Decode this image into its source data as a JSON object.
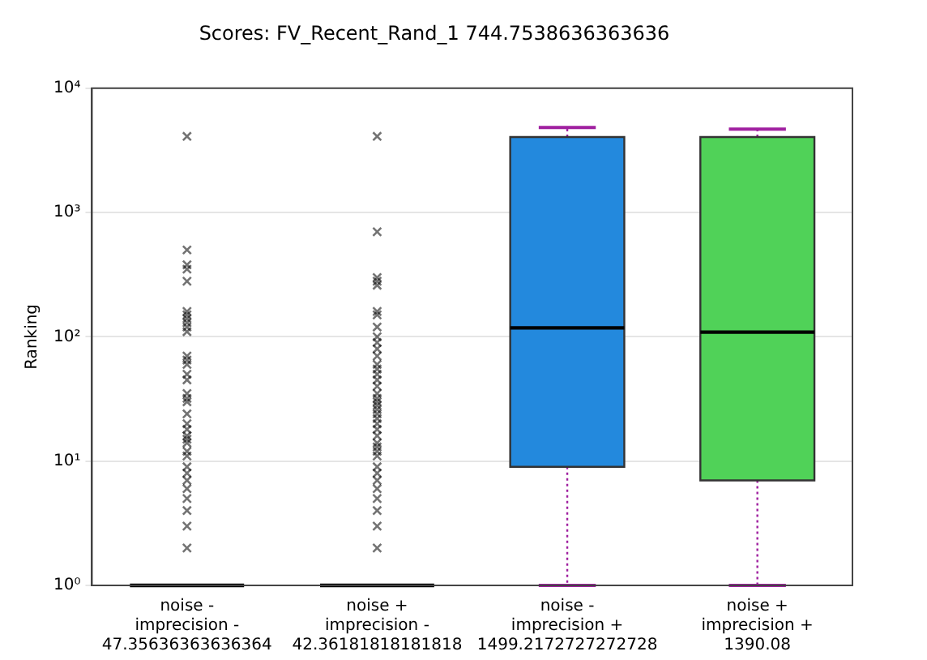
{
  "chart_data": {
    "type": "box",
    "title": "Scores: FV_Recent_Rand_1 744.7538636363636",
    "ylabel": "Ranking",
    "categories": [
      "noise -\nimprecision -\n47.35636363636364",
      "noise +\nimprecision -\n42.36181818181818",
      "noise -\nimprecision +\n1499.2172727272728",
      "noise +\nimprecision +\n1390.08"
    ],
    "colors": [
      "#000000",
      "#000000",
      "#2389dd",
      "#50d258"
    ],
    "boxes": [
      {
        "low": 1,
        "q1": 1,
        "median": 1,
        "q3": 1,
        "high": 1,
        "outliers": [
          4100,
          500,
          380,
          350,
          280,
          160,
          150,
          140,
          130,
          120,
          110,
          70,
          65,
          60,
          50,
          45,
          35,
          32,
          30,
          24,
          20,
          18,
          16,
          15,
          14,
          12,
          11,
          9,
          8,
          7,
          6,
          5,
          4,
          3,
          2
        ]
      },
      {
        "low": 1,
        "q1": 1,
        "median": 1,
        "q3": 1,
        "high": 1,
        "outliers": [
          4100,
          700,
          300,
          280,
          260,
          160,
          150,
          120,
          100,
          90,
          80,
          70,
          60,
          55,
          50,
          45,
          40,
          35,
          32,
          30,
          28,
          26,
          24,
          22,
          20,
          18,
          16,
          14,
          13,
          12,
          11,
          9,
          8,
          7,
          6,
          5,
          4,
          3,
          2
        ]
      },
      {
        "low": 1,
        "q1": 9,
        "median": 118,
        "q3": 4050,
        "high": 4830
      },
      {
        "low": 1,
        "q1": 7,
        "median": 109,
        "q3": 4050,
        "high": 4690
      }
    ],
    "log": true,
    "ylim": [
      1,
      10000
    ],
    "yticks": [
      {
        "value": 1,
        "label": "10⁰"
      },
      {
        "value": 10,
        "label": "10¹"
      },
      {
        "value": 100,
        "label": "10²"
      },
      {
        "value": 1000,
        "label": "10³"
      },
      {
        "value": 10000,
        "label": "10⁴"
      }
    ],
    "grid": "y",
    "marker": "cross",
    "legend": false
  }
}
